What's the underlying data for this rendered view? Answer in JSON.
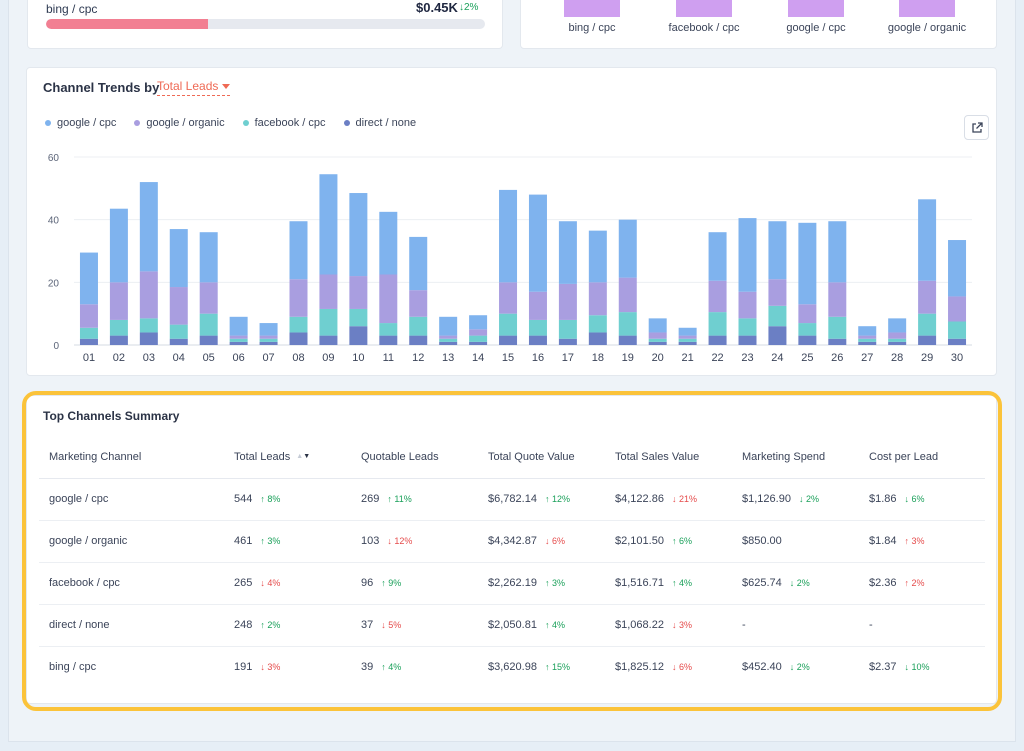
{
  "top_left": {
    "label": "bing / cpc",
    "value": "$0.45K",
    "change": "↓2%",
    "bar_fraction": 0.37
  },
  "top_right": {
    "labels": [
      "bing / cpc",
      "facebook / cpc",
      "google / cpc",
      "google / organic"
    ]
  },
  "trends": {
    "title": "Channel Trends by",
    "metric": "Total Leads",
    "legend": [
      {
        "name": "google / cpc",
        "color": "#7fb3ee"
      },
      {
        "name": "google / organic",
        "color": "#a99ee0"
      },
      {
        "name": "facebook / cpc",
        "color": "#6fcfd0"
      },
      {
        "name": "direct / none",
        "color": "#6b7fc4"
      }
    ]
  },
  "chart_data": {
    "type": "bar",
    "stacked": true,
    "categories": [
      "01",
      "02",
      "03",
      "04",
      "05",
      "06",
      "07",
      "08",
      "09",
      "10",
      "11",
      "12",
      "13",
      "14",
      "15",
      "16",
      "17",
      "18",
      "19",
      "20",
      "21",
      "22",
      "23",
      "24",
      "25",
      "26",
      "27",
      "28",
      "29",
      "30"
    ],
    "ylim": [
      0,
      60
    ],
    "yticks": [
      0,
      20,
      40,
      60
    ],
    "series": [
      {
        "name": "direct / none",
        "color": "#6b7fc4",
        "values": [
          2,
          3,
          4,
          2,
          3,
          1,
          1,
          4,
          3,
          6,
          3,
          3,
          1,
          1,
          3,
          3,
          2,
          4,
          3,
          1,
          1,
          3,
          3,
          6,
          3,
          2,
          1,
          1,
          3,
          2
        ]
      },
      {
        "name": "facebook / cpc",
        "color": "#6fcfd0",
        "values": [
          3.5,
          5,
          4.5,
          4.5,
          7,
          1,
          1,
          5,
          8.5,
          5.5,
          4,
          6,
          1,
          2,
          7,
          5,
          6,
          5.5,
          7.5,
          1,
          1,
          7.5,
          5.5,
          6.5,
          4,
          7,
          1,
          1,
          7,
          5.5
        ]
      },
      {
        "name": "google / organic",
        "color": "#a99ee0",
        "values": [
          7.5,
          12,
          15,
          12,
          10,
          1,
          1,
          12,
          11,
          10.5,
          15.5,
          8.5,
          1,
          2,
          10,
          9,
          11.5,
          10.5,
          11,
          2,
          1,
          10,
          8.5,
          8.5,
          6,
          11,
          1,
          2,
          10.5,
          8
        ]
      },
      {
        "name": "google / cpc",
        "color": "#7fb3ee",
        "values": [
          16.5,
          23.5,
          28.5,
          18.5,
          16,
          6,
          4,
          18.5,
          32,
          26.5,
          20,
          17,
          6,
          4.5,
          29.5,
          31,
          20,
          16.5,
          18.5,
          4.5,
          2.5,
          15.5,
          23.5,
          18.5,
          26,
          19.5,
          3,
          4.5,
          26,
          18
        ]
      }
    ]
  },
  "summary": {
    "title": "Top Channels Summary",
    "columns": [
      "Marketing Channel",
      "Total Leads",
      "Quotable Leads",
      "Total Quote Value",
      "Total Sales Value",
      "Marketing Spend",
      "Cost per Lead"
    ],
    "rows": [
      {
        "channel": "google / cpc",
        "cells": [
          {
            "v": "544",
            "d": "↑ 8%",
            "dir": "up"
          },
          {
            "v": "269",
            "d": "↑ 11%",
            "dir": "up"
          },
          {
            "v": "$6,782.14",
            "d": "↑ 12%",
            "dir": "up"
          },
          {
            "v": "$4,122.86",
            "d": "↓ 21%",
            "dir": "down"
          },
          {
            "v": "$1,126.90",
            "d": "↓ 2%",
            "dir": "up"
          },
          {
            "v": "$1.86",
            "d": "↓ 6%",
            "dir": "up"
          }
        ]
      },
      {
        "channel": "google / organic",
        "cells": [
          {
            "v": "461",
            "d": "↑ 3%",
            "dir": "up"
          },
          {
            "v": "103",
            "d": "↓ 12%",
            "dir": "down"
          },
          {
            "v": "$4,342.87",
            "d": "↓ 6%",
            "dir": "down"
          },
          {
            "v": "$2,101.50",
            "d": "↑ 6%",
            "dir": "up"
          },
          {
            "v": "$850.00",
            "d": "",
            "dir": ""
          },
          {
            "v": "$1.84",
            "d": "↑ 3%",
            "dir": "down"
          }
        ]
      },
      {
        "channel": "facebook / cpc",
        "cells": [
          {
            "v": "265",
            "d": "↓ 4%",
            "dir": "down"
          },
          {
            "v": "96",
            "d": "↑ 9%",
            "dir": "up"
          },
          {
            "v": "$2,262.19",
            "d": "↑ 3%",
            "dir": "up"
          },
          {
            "v": "$1,516.71",
            "d": "↑ 4%",
            "dir": "up"
          },
          {
            "v": "$625.74",
            "d": "↓ 2%",
            "dir": "up"
          },
          {
            "v": "$2.36",
            "d": "↑ 2%",
            "dir": "down"
          }
        ]
      },
      {
        "channel": "direct / none",
        "cells": [
          {
            "v": "248",
            "d": "↑ 2%",
            "dir": "up"
          },
          {
            "v": "37",
            "d": "↓ 5%",
            "dir": "down"
          },
          {
            "v": "$2,050.81",
            "d": "↑ 4%",
            "dir": "up"
          },
          {
            "v": "$1,068.22",
            "d": "↓ 3%",
            "dir": "down"
          },
          {
            "v": "-",
            "d": "",
            "dir": ""
          },
          {
            "v": "-",
            "d": "",
            "dir": ""
          }
        ]
      },
      {
        "channel": "bing / cpc",
        "cells": [
          {
            "v": "191",
            "d": "↓ 3%",
            "dir": "down"
          },
          {
            "v": "39",
            "d": "↑ 4%",
            "dir": "up"
          },
          {
            "v": "$3,620.98",
            "d": "↑ 15%",
            "dir": "up"
          },
          {
            "v": "$1,825.12",
            "d": "↓ 6%",
            "dir": "down"
          },
          {
            "v": "$452.40",
            "d": "↓ 2%",
            "dir": "up"
          },
          {
            "v": "$2.37",
            "d": "↓ 10%",
            "dir": "up"
          }
        ]
      }
    ]
  }
}
